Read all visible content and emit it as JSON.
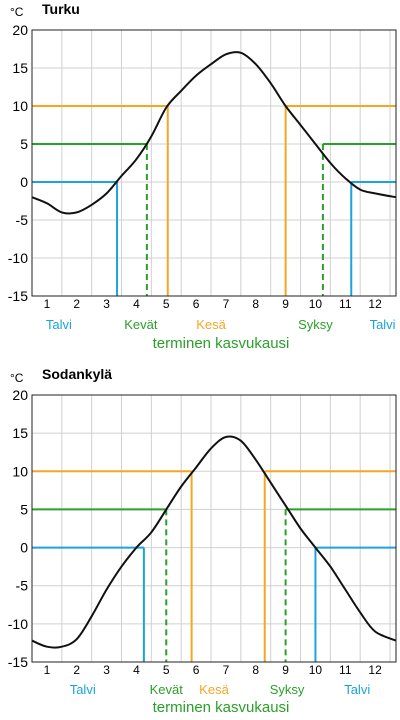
{
  "chart_data": [
    {
      "type": "line",
      "title": "Turku",
      "ylabel": "°C",
      "ylim": [
        -15,
        20
      ],
      "yticks": [
        20,
        15,
        10,
        5,
        0,
        -5,
        -10,
        -15
      ],
      "xlim": [
        0.5,
        12.7
      ],
      "months": [
        "1",
        "2",
        "3",
        "4",
        "5",
        "6",
        "7",
        "8",
        "9",
        "10",
        "11",
        "12"
      ],
      "grid": true,
      "series": [
        {
          "x": [
            0.5,
            1.0,
            1.5,
            2.0,
            2.5,
            3.0,
            3.5,
            4.0,
            4.5,
            5.0,
            5.5,
            6.0,
            6.5,
            7.0,
            7.5,
            8.0,
            8.5,
            9.0,
            9.5,
            10.0,
            10.5,
            11.0,
            11.5,
            12.0,
            12.7
          ],
          "y": [
            -2.0,
            -2.8,
            -4.0,
            -4.0,
            -3.0,
            -1.5,
            0.8,
            3.0,
            6.0,
            9.8,
            12.0,
            14.0,
            15.5,
            16.8,
            17.0,
            15.5,
            13.0,
            10.0,
            7.5,
            5.0,
            2.5,
            0.5,
            -1.0,
            -1.5,
            -2.0
          ]
        }
      ],
      "thresholds": [
        {
          "value": 0,
          "color": "#1aa3dc",
          "start": 3.35,
          "end": 11.2,
          "dashed": false
        },
        {
          "value": 5,
          "color": "#2aa02a",
          "start": 4.35,
          "end": 10.25,
          "dashed": true
        },
        {
          "value": 10,
          "color": "#f5a623",
          "start": 5.05,
          "end": 9.0,
          "dashed": false
        }
      ],
      "seasons": [
        {
          "label": "Talvi",
          "color": "#1aa3dc",
          "x": 1.4
        },
        {
          "label": "Kevät",
          "color": "#2aa02a",
          "x": 4.15
        },
        {
          "label": "Kesä",
          "color": "#f5a623",
          "x": 6.5
        },
        {
          "label": "Syksy",
          "color": "#2aa02a",
          "x": 10.0
        },
        {
          "label": "Talvi",
          "color": "#1aa3dc",
          "x": 12.25
        }
      ],
      "growing_label": "terminen kasvukausi",
      "growing_color": "#2aa02a"
    },
    {
      "type": "line",
      "title": "Sodankylä",
      "ylabel": "°C",
      "ylim": [
        -15,
        20
      ],
      "yticks": [
        20,
        15,
        10,
        5,
        0,
        -5,
        -10,
        -15
      ],
      "xlim": [
        0.5,
        12.7
      ],
      "months": [
        "1",
        "2",
        "3",
        "4",
        "5",
        "6",
        "7",
        "8",
        "9",
        "10",
        "11",
        "12"
      ],
      "grid": true,
      "series": [
        {
          "x": [
            0.5,
            1.0,
            1.5,
            2.0,
            2.5,
            3.0,
            3.5,
            4.0,
            4.5,
            5.0,
            5.5,
            6.0,
            6.5,
            7.0,
            7.5,
            8.0,
            8.5,
            9.0,
            9.5,
            10.0,
            10.5,
            11.0,
            11.5,
            12.0,
            12.7
          ],
          "y": [
            -12.2,
            -13.0,
            -13.0,
            -12.0,
            -9.0,
            -5.5,
            -2.5,
            0.0,
            2.0,
            5.0,
            8.0,
            10.5,
            13.0,
            14.5,
            14.0,
            11.5,
            8.5,
            5.5,
            2.5,
            0.0,
            -2.5,
            -5.5,
            -8.5,
            -11.0,
            -12.2
          ]
        }
      ],
      "thresholds": [
        {
          "value": 0,
          "color": "#1aa3dc",
          "start": 4.25,
          "end": 10.0,
          "dashed": false
        },
        {
          "value": 5,
          "color": "#2aa02a",
          "start": 5.0,
          "end": 9.0,
          "dashed": true
        },
        {
          "value": 10,
          "color": "#f5a623",
          "start": 5.85,
          "end": 8.3,
          "dashed": false
        }
      ],
      "seasons": [
        {
          "label": "Talvi",
          "color": "#1aa3dc",
          "x": 2.2
        },
        {
          "label": "Kevät",
          "color": "#2aa02a",
          "x": 5.0
        },
        {
          "label": "Kesä",
          "color": "#f5a623",
          "x": 6.6
        },
        {
          "label": "Syksy",
          "color": "#2aa02a",
          "x": 9.05
        },
        {
          "label": "Talvi",
          "color": "#1aa3dc",
          "x": 11.4
        }
      ],
      "growing_label": "terminen kasvukausi",
      "growing_color": "#2aa02a"
    }
  ]
}
